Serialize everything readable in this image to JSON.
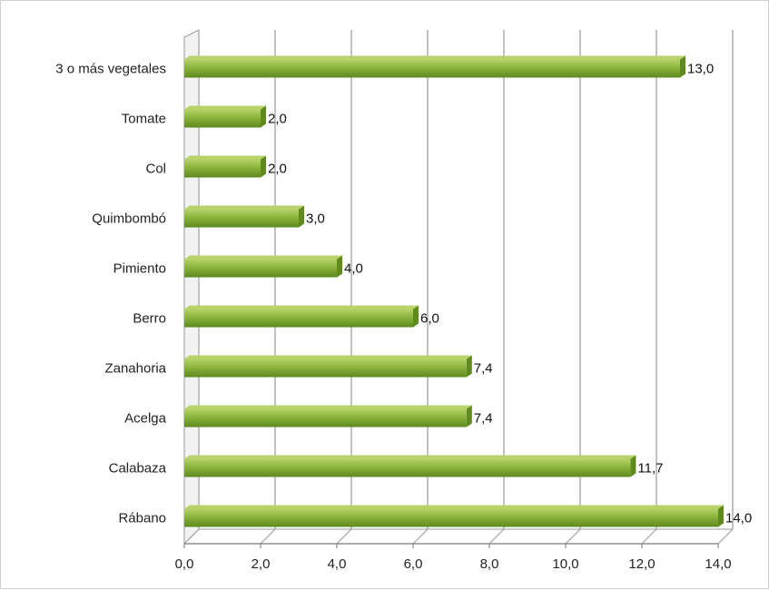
{
  "chart_data": {
    "type": "bar",
    "orientation": "horizontal",
    "categories": [
      "3 o más vegetales",
      "Tomate",
      "Col",
      "Quimbombó",
      "Pimiento",
      "Berro",
      "Zanahoria",
      "Acelga",
      "Calabaza",
      "Rábano"
    ],
    "values": [
      13.0,
      2.0,
      2.0,
      3.0,
      4.0,
      6.0,
      7.4,
      7.4,
      11.7,
      14.0
    ],
    "value_labels": [
      "13,0",
      "2,0",
      "2,0",
      "3,0",
      "4,0",
      "6,0",
      "7,4",
      "7,4",
      "11,7",
      "14,0"
    ],
    "x_ticks": [
      "0,0",
      "2,0",
      "4,0",
      "6,0",
      "8,0",
      "10,0",
      "12,0",
      "14,0"
    ],
    "xlim": [
      0,
      14
    ],
    "title": "",
    "xlabel": "",
    "ylabel": "",
    "grid": true,
    "legend": "none",
    "bar_color": "#8ab43c",
    "bar_highlight": "#b7d36a",
    "bar_shadow": "#5e8a1e",
    "grid_color": "#9a9a9a"
  }
}
